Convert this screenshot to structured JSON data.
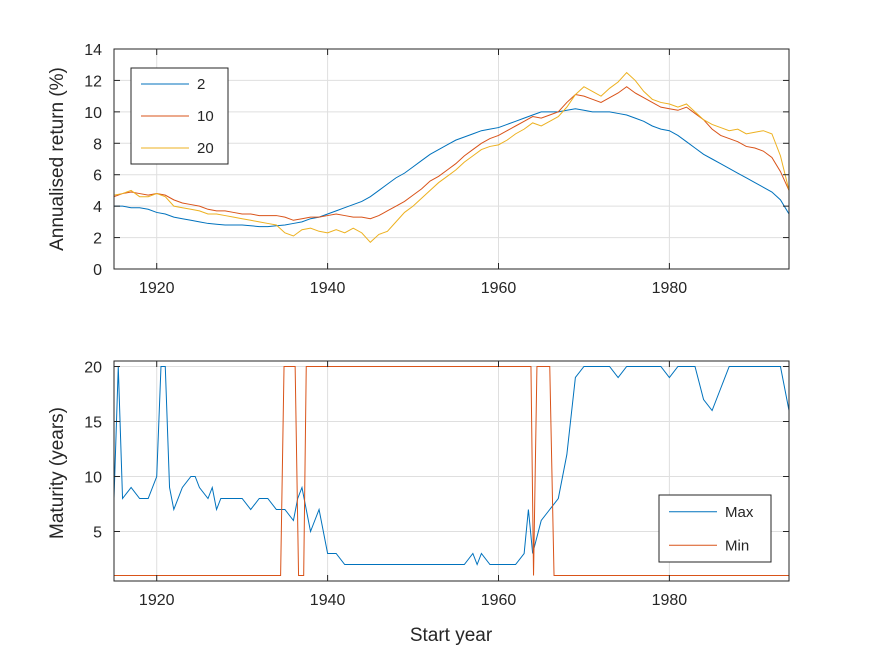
{
  "chart_data": [
    {
      "type": "line",
      "title": "",
      "xlabel": "",
      "ylabel": "Annualised return (%)",
      "xlim": [
        1915,
        1994
      ],
      "ylim": [
        0,
        14
      ],
      "xticks": [
        1920,
        1940,
        1960,
        1980
      ],
      "yticks": [
        0,
        2,
        4,
        6,
        8,
        10,
        12,
        14
      ],
      "grid": true,
      "legend_position": "top-left",
      "series": [
        {
          "name": "2",
          "color": "#0072BD",
          "x": [
            1915,
            1916,
            1917,
            1918,
            1919,
            1920,
            1921,
            1922,
            1923,
            1924,
            1925,
            1926,
            1927,
            1928,
            1929,
            1930,
            1931,
            1932,
            1933,
            1934,
            1935,
            1936,
            1937,
            1938,
            1939,
            1940,
            1941,
            1942,
            1943,
            1944,
            1945,
            1946,
            1947,
            1948,
            1949,
            1950,
            1951,
            1952,
            1953,
            1954,
            1955,
            1956,
            1957,
            1958,
            1959,
            1960,
            1961,
            1962,
            1963,
            1964,
            1965,
            1966,
            1967,
            1968,
            1969,
            1970,
            1971,
            1972,
            1973,
            1974,
            1975,
            1976,
            1977,
            1978,
            1979,
            1980,
            1981,
            1982,
            1983,
            1984,
            1985,
            1986,
            1987,
            1988,
            1989,
            1990,
            1991,
            1992,
            1993,
            1994
          ],
          "values": [
            4.0,
            4.0,
            3.9,
            3.9,
            3.8,
            3.6,
            3.5,
            3.3,
            3.2,
            3.1,
            3.0,
            2.9,
            2.85,
            2.8,
            2.8,
            2.8,
            2.75,
            2.7,
            2.7,
            2.75,
            2.8,
            2.9,
            3.0,
            3.2,
            3.3,
            3.5,
            3.7,
            3.9,
            4.1,
            4.3,
            4.6,
            5.0,
            5.4,
            5.8,
            6.1,
            6.5,
            6.9,
            7.3,
            7.6,
            7.9,
            8.2,
            8.4,
            8.6,
            8.8,
            8.9,
            9.0,
            9.2,
            9.4,
            9.6,
            9.8,
            10.0,
            10.0,
            10.0,
            10.1,
            10.2,
            10.1,
            10.0,
            10.0,
            10.0,
            9.9,
            9.8,
            9.6,
            9.4,
            9.1,
            8.9,
            8.8,
            8.5,
            8.1,
            7.7,
            7.3,
            7.0,
            6.7,
            6.4,
            6.1,
            5.8,
            5.5,
            5.2,
            4.9,
            4.4,
            3.5
          ]
        },
        {
          "name": "10",
          "color": "#D95319",
          "x": [
            1915,
            1916,
            1917,
            1918,
            1919,
            1920,
            1921,
            1922,
            1923,
            1924,
            1925,
            1926,
            1927,
            1928,
            1929,
            1930,
            1931,
            1932,
            1933,
            1934,
            1935,
            1936,
            1937,
            1938,
            1939,
            1940,
            1941,
            1942,
            1943,
            1944,
            1945,
            1946,
            1947,
            1948,
            1949,
            1950,
            1951,
            1952,
            1953,
            1954,
            1955,
            1956,
            1957,
            1958,
            1959,
            1960,
            1961,
            1962,
            1963,
            1964,
            1965,
            1966,
            1967,
            1968,
            1969,
            1970,
            1971,
            1972,
            1973,
            1974,
            1975,
            1976,
            1977,
            1978,
            1979,
            1980,
            1981,
            1982,
            1983,
            1984,
            1985,
            1986,
            1987,
            1988,
            1989,
            1990,
            1991,
            1992,
            1993,
            1994
          ],
          "values": [
            4.6,
            4.8,
            4.9,
            4.8,
            4.7,
            4.8,
            4.7,
            4.4,
            4.2,
            4.1,
            4.0,
            3.8,
            3.7,
            3.7,
            3.6,
            3.5,
            3.5,
            3.4,
            3.4,
            3.4,
            3.3,
            3.1,
            3.2,
            3.3,
            3.3,
            3.4,
            3.5,
            3.4,
            3.3,
            3.3,
            3.2,
            3.4,
            3.7,
            4.0,
            4.3,
            4.7,
            5.1,
            5.6,
            5.9,
            6.3,
            6.7,
            7.2,
            7.6,
            8.0,
            8.3,
            8.5,
            8.8,
            9.1,
            9.4,
            9.7,
            9.6,
            9.8,
            10.0,
            10.6,
            11.1,
            11.0,
            10.8,
            10.6,
            10.9,
            11.2,
            11.6,
            11.2,
            10.9,
            10.6,
            10.3,
            10.2,
            10.1,
            10.3,
            9.9,
            9.5,
            8.9,
            8.5,
            8.3,
            8.1,
            7.8,
            7.7,
            7.5,
            7.1,
            6.2,
            5.0
          ]
        },
        {
          "name": "20",
          "color": "#EDB120",
          "x": [
            1915,
            1916,
            1917,
            1918,
            1919,
            1920,
            1921,
            1922,
            1923,
            1924,
            1925,
            1926,
            1927,
            1928,
            1929,
            1930,
            1931,
            1932,
            1933,
            1934,
            1935,
            1936,
            1937,
            1938,
            1939,
            1940,
            1941,
            1942,
            1943,
            1944,
            1945,
            1946,
            1947,
            1948,
            1949,
            1950,
            1951,
            1952,
            1953,
            1954,
            1955,
            1956,
            1957,
            1958,
            1959,
            1960,
            1961,
            1962,
            1963,
            1964,
            1965,
            1966,
            1967,
            1968,
            1969,
            1970,
            1971,
            1972,
            1973,
            1974,
            1975,
            1976,
            1977,
            1978,
            1979,
            1980,
            1981,
            1982,
            1983,
            1984,
            1985,
            1986,
            1987,
            1988,
            1989,
            1990,
            1991,
            1992,
            1993,
            1994
          ],
          "values": [
            4.7,
            4.8,
            5.0,
            4.6,
            4.6,
            4.8,
            4.6,
            4.0,
            3.9,
            3.8,
            3.7,
            3.5,
            3.5,
            3.4,
            3.3,
            3.2,
            3.1,
            3.0,
            2.9,
            2.8,
            2.3,
            2.1,
            2.5,
            2.6,
            2.4,
            2.3,
            2.5,
            2.3,
            2.6,
            2.3,
            1.7,
            2.2,
            2.4,
            3.0,
            3.6,
            4.0,
            4.5,
            5.0,
            5.5,
            5.9,
            6.3,
            6.8,
            7.2,
            7.6,
            7.8,
            7.9,
            8.2,
            8.6,
            8.9,
            9.3,
            9.1,
            9.4,
            9.7,
            10.3,
            11.1,
            11.6,
            11.3,
            11.0,
            11.5,
            11.9,
            12.5,
            12.0,
            11.3,
            10.8,
            10.6,
            10.5,
            10.3,
            10.5,
            10.0,
            9.5,
            9.2,
            9.0,
            8.8,
            8.9,
            8.6,
            8.7,
            8.8,
            8.6,
            7.2,
            5.0
          ]
        }
      ]
    },
    {
      "type": "line",
      "title": "",
      "xlabel": "Start year",
      "ylabel": "Maturity (years)",
      "xlim": [
        1915,
        1994
      ],
      "ylim": [
        0.5,
        20.5
      ],
      "xticks": [
        1920,
        1940,
        1960,
        1980
      ],
      "yticks": [
        5,
        10,
        15,
        20
      ],
      "grid": true,
      "legend_position": "bottom-right",
      "series": [
        {
          "name": "Max",
          "color": "#0072BD",
          "x": [
            1915,
            1915.5,
            1916,
            1917,
            1918,
            1919,
            1920,
            1920.5,
            1921,
            1921.5,
            1922,
            1923,
            1924,
            1924.5,
            1925,
            1926,
            1926.5,
            1927,
            1927.5,
            1928,
            1929,
            1930,
            1931,
            1932,
            1933,
            1934,
            1935,
            1936,
            1936.5,
            1937,
            1938,
            1939,
            1940,
            1941,
            1942,
            1943,
            1944,
            1945,
            1946,
            1947,
            1948,
            1949,
            1950,
            1951,
            1952,
            1953,
            1954,
            1955,
            1956,
            1957,
            1957.5,
            1958,
            1959,
            1960,
            1961,
            1962,
            1963,
            1963.5,
            1964,
            1965,
            1966,
            1967,
            1968,
            1969,
            1970,
            1971,
            1972,
            1973,
            1974,
            1975,
            1976,
            1977,
            1978,
            1979,
            1980,
            1981,
            1982,
            1983,
            1984,
            1985,
            1986,
            1987,
            1988,
            1989,
            1990,
            1991,
            1992,
            1993,
            1994
          ],
          "values": [
            8,
            20,
            8,
            9,
            8,
            8,
            10,
            20,
            20,
            9,
            7,
            9,
            10,
            10,
            9,
            8,
            9,
            7,
            8,
            8,
            8,
            8,
            7,
            8,
            8,
            7,
            7,
            6,
            8,
            9,
            5,
            7,
            3,
            3,
            2,
            2,
            2,
            2,
            2,
            2,
            2,
            2,
            2,
            2,
            2,
            2,
            2,
            2,
            2,
            3,
            2,
            3,
            2,
            2,
            2,
            2,
            3,
            7,
            3,
            6,
            7,
            8,
            12,
            19,
            20,
            20,
            20,
            20,
            19,
            20,
            20,
            20,
            20,
            20,
            19,
            20,
            20,
            20,
            17,
            16,
            18,
            20,
            20,
            20,
            20,
            20,
            20,
            20,
            16
          ]
        },
        {
          "name": "Min",
          "color": "#D95319",
          "x": [
            1915,
            1934.5,
            1934.9,
            1936.2,
            1936.6,
            1937.2,
            1937.5,
            1938.0,
            1938.5,
            1963.8,
            1964.1,
            1964.5,
            1966.0,
            1966.5,
            1994
          ],
          "values": [
            1,
            1,
            20,
            20,
            1,
            1,
            20,
            20,
            20,
            20,
            1,
            20,
            20,
            1,
            1
          ]
        }
      ]
    }
  ]
}
